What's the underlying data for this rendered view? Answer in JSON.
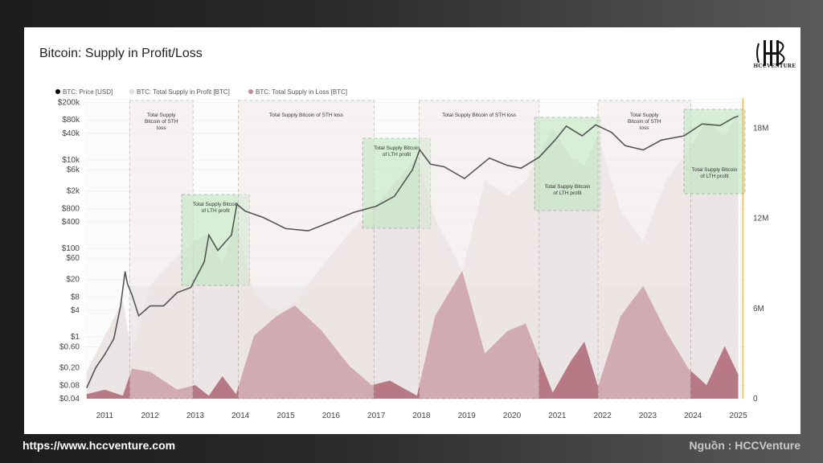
{
  "footer": {
    "url": "https://www.hccventure.com",
    "source": "Nguồn : HCCVenture"
  },
  "logo": {
    "text": "HCCVENTURE",
    "icon": "hcc-monogram-icon"
  },
  "chart_data": {
    "type": "area",
    "title": "Bitcoin: Supply in Profit/Loss",
    "legend_position": "top-left",
    "legend": [
      {
        "name": "BTC: Price [USD]",
        "color": "#000000"
      },
      {
        "name": "BTC: Total Supply in Profit [BTC]",
        "color": "#e6dede"
      },
      {
        "name": "BTC: Total Supply in Loss [BTC]",
        "color": "#c48a97"
      }
    ],
    "colors": {
      "price": "#555555",
      "supply_profit": "#e9e0e1",
      "supply_loss": "#a65466",
      "supply_loss_dark": "#7a1f3a",
      "sth_region": "#f3e8e8",
      "lth_region": "#bfe8bf",
      "gray_region": "#d9d9d9",
      "current_marker": "#f0a020"
    },
    "x_ticks": [
      "2011",
      "2012",
      "2013",
      "2014",
      "2015",
      "2016",
      "2017",
      "2018",
      "2019",
      "2020",
      "2021",
      "2022",
      "2023",
      "2024",
      "2025"
    ],
    "y_left_ticks": [
      "$200k",
      "$80k",
      "$40k",
      "$10k",
      "$6k",
      "$2k",
      "$800",
      "$400",
      "$100",
      "$60",
      "$20",
      "$8",
      "$4",
      "$1",
      "$0.60",
      "$0.20",
      "$0.08",
      "$0.04"
    ],
    "y_left_scale": "log",
    "y_right_ticks": [
      "18M",
      "12M",
      "6M",
      "0"
    ],
    "y_right_range": [
      0,
      20000000
    ],
    "price": {
      "x": [
        2010.6,
        2010.8,
        2011.0,
        2011.2,
        2011.35,
        2011.45,
        2011.5,
        2011.6,
        2011.75,
        2012.0,
        2012.3,
        2012.6,
        2012.9,
        2013.2,
        2013.3,
        2013.5,
        2013.8,
        2013.92,
        2014.1,
        2014.5,
        2015.0,
        2015.5,
        2016.0,
        2016.5,
        2017.0,
        2017.4,
        2017.8,
        2017.96,
        2018.2,
        2018.5,
        2018.95,
        2019.5,
        2019.9,
        2020.2,
        2020.6,
        2020.95,
        2021.2,
        2021.55,
        2021.85,
        2022.2,
        2022.5,
        2022.9,
        2023.3,
        2023.8,
        2024.2,
        2024.6,
        2024.9,
        2025.0
      ],
      "y": [
        0.07,
        0.2,
        0.4,
        0.9,
        5,
        30,
        16,
        9,
        3,
        5,
        5,
        10,
        13,
        50,
        200,
        90,
        200,
        1000,
        700,
        500,
        280,
        250,
        400,
        650,
        900,
        1500,
        6000,
        17000,
        8000,
        7000,
        3800,
        11000,
        7500,
        6500,
        11500,
        28000,
        58000,
        35000,
        62000,
        42000,
        21000,
        16800,
        28000,
        35000,
        65000,
        60000,
        90000,
        98000
      ]
    },
    "supply_profit": {
      "x": [
        2010.6,
        2011.0,
        2011.4,
        2011.6,
        2012.0,
        2012.6,
        2013.0,
        2013.3,
        2013.6,
        2013.9,
        2014.3,
        2014.8,
        2015.2,
        2015.8,
        2016.4,
        2016.9,
        2017.3,
        2017.9,
        2018.3,
        2018.9,
        2019.4,
        2019.9,
        2020.3,
        2020.9,
        2021.3,
        2021.6,
        2021.9,
        2022.4,
        2022.9,
        2023.4,
        2023.9,
        2024.3,
        2024.7,
        2025.0
      ],
      "y": [
        1800000,
        4200000,
        6500000,
        3000000,
        7500000,
        9500000,
        10500000,
        11000000,
        9000000,
        11800000,
        7000000,
        5800000,
        6400000,
        8800000,
        11000000,
        12500000,
        14000000,
        16000000,
        12000000,
        8500000,
        14500000,
        13500000,
        14500000,
        18000000,
        16000000,
        15500000,
        17500000,
        12500000,
        10500000,
        14500000,
        16500000,
        18500000,
        17500000,
        19000000
      ]
    },
    "supply_loss": {
      "x": [
        2010.6,
        2011.0,
        2011.4,
        2011.6,
        2012.0,
        2012.6,
        2013.0,
        2013.3,
        2013.6,
        2013.9,
        2014.3,
        2014.8,
        2015.2,
        2015.8,
        2016.4,
        2016.9,
        2017.3,
        2017.9,
        2018.3,
        2018.9,
        2019.4,
        2019.9,
        2020.3,
        2020.9,
        2021.3,
        2021.6,
        2021.9,
        2022.4,
        2022.9,
        2023.4,
        2023.9,
        2024.3,
        2024.7,
        2025.0
      ],
      "y": [
        300000,
        600000,
        200000,
        2000000,
        1800000,
        600000,
        900000,
        200000,
        1500000,
        300000,
        4200000,
        5500000,
        6200000,
        4500000,
        2200000,
        900000,
        1200000,
        200000,
        5500000,
        8500000,
        3000000,
        4500000,
        5000000,
        400000,
        2500000,
        3800000,
        800000,
        5500000,
        7500000,
        4500000,
        2000000,
        900000,
        3500000,
        1600000
      ]
    },
    "regions": [
      {
        "type": "sth-loss",
        "label": "Total Supply Bitcoin of STH loss",
        "x0": 2011.55,
        "x1": 2012.95
      },
      {
        "type": "lth-profit",
        "label": "Total Supply Bitcoin of LTH profit",
        "x0": 2012.7,
        "x1": 2014.2
      },
      {
        "type": "sth-loss",
        "label": "Total Supply Bitcoin of STH loss",
        "x0": 2013.95,
        "x1": 2016.95
      },
      {
        "type": "lth-profit",
        "label": "Total Supply Bitcoin of LTH profit",
        "x0": 2016.7,
        "x1": 2018.2
      },
      {
        "type": "sth-loss",
        "label": "Total Supply Bitcoin of STH loss",
        "x0": 2017.95,
        "x1": 2020.6
      },
      {
        "type": "lth-profit",
        "label": "Total Supply Bitcoin of LTH profit",
        "x0": 2020.5,
        "x1": 2021.95
      },
      {
        "type": "sth-loss",
        "label": "Total Supply Bitcoin of STH loss",
        "x0": 2021.9,
        "x1": 2023.95
      },
      {
        "type": "lth-profit",
        "label": "Total Supply Bitcoin of LTH profit",
        "x0": 2023.8,
        "x1": 2025.15
      }
    ]
  }
}
